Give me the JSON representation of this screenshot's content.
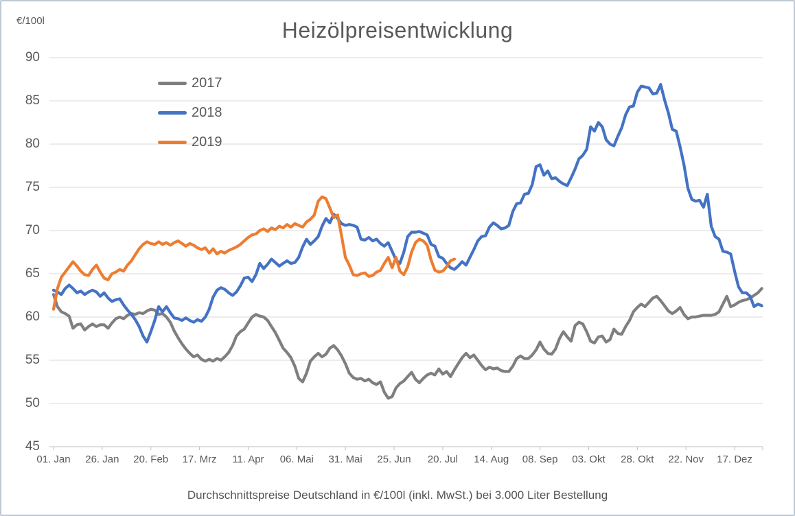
{
  "chart_data": {
    "type": "line",
    "title": "Heizölpreisentwicklung",
    "unit_label": "€/100l",
    "footer": "Durchschnittspreise Deutschland in €/100l (inkl. MwSt.) bei 3.000 Liter Bestellung",
    "grid": true,
    "legend_position": "upper-left-inside",
    "ylim": [
      45,
      90
    ],
    "yticks": [
      90,
      85,
      80,
      75,
      70,
      65,
      60,
      55,
      50,
      45
    ],
    "xticks": [
      "01. Jan",
      "26. Jan",
      "20. Feb",
      "17. Mrz",
      "11. Apr",
      "06. Mai",
      "31. Mai",
      "25. Jun",
      "20. Jul",
      "14. Aug",
      "08. Sep",
      "03. Okt",
      "28. Okt",
      "22. Nov",
      "17. Dez"
    ],
    "xtick_interval_days": 25,
    "x_unit": "day-of-year",
    "sample_step_days": 2,
    "grid_color": "#d9d9d9",
    "axis_color": "#bfbfbf",
    "text_color": "#595959",
    "series": [
      {
        "name": "2017",
        "color": "#7f7f7f",
        "start_day": 1,
        "values": [
          62.6,
          61.2,
          60.6,
          60.4,
          60.1,
          58.7,
          59.1,
          59.2,
          58.5,
          58.9,
          59.2,
          58.9,
          59.1,
          59.1,
          58.7,
          59.3,
          59.8,
          60.0,
          59.8,
          60.2,
          60.4,
          60.3,
          60.5,
          60.4,
          60.7,
          60.9,
          60.8,
          60.3,
          60.4,
          60.0,
          59.4,
          58.4,
          57.6,
          56.9,
          56.3,
          55.8,
          55.4,
          55.6,
          55.1,
          54.9,
          55.1,
          54.9,
          55.2,
          55.0,
          55.4,
          55.9,
          56.7,
          57.8,
          58.3,
          58.6,
          59.3,
          60.0,
          60.3,
          60.1,
          60.0,
          59.6,
          58.9,
          58.2,
          57.3,
          56.4,
          55.9,
          55.3,
          54.3,
          52.9,
          52.5,
          53.5,
          54.9,
          55.4,
          55.8,
          55.4,
          55.7,
          56.4,
          56.7,
          56.2,
          55.5,
          54.6,
          53.5,
          53.0,
          52.8,
          52.9,
          52.6,
          52.8,
          52.4,
          52.2,
          52.5,
          51.3,
          50.6,
          50.8,
          51.8,
          52.3,
          52.6,
          53.1,
          53.6,
          52.8,
          52.4,
          52.9,
          53.3,
          53.5,
          53.3,
          54.0,
          53.4,
          53.7,
          53.1,
          53.9,
          54.6,
          55.3,
          55.8,
          55.3,
          55.6,
          55.0,
          54.4,
          53.9,
          54.2,
          54.0,
          54.1,
          53.8,
          53.7,
          53.7,
          54.3,
          55.2,
          55.5,
          55.2,
          55.2,
          55.6,
          56.2,
          57.1,
          56.3,
          55.8,
          55.7,
          56.3,
          57.5,
          58.3,
          57.7,
          57.2,
          59.0,
          59.4,
          59.2,
          58.3,
          57.2,
          57.0,
          57.7,
          57.8,
          57.1,
          57.4,
          58.6,
          58.1,
          58.0,
          58.9,
          59.6,
          60.6,
          61.1,
          61.5,
          61.2,
          61.7,
          62.2,
          62.4,
          61.9,
          61.3,
          60.7,
          60.4,
          60.7,
          61.1,
          60.3,
          59.8,
          60.0,
          60.0,
          60.1,
          60.2,
          60.2,
          60.2,
          60.3,
          60.6,
          61.5,
          62.4,
          61.2,
          61.4,
          61.7,
          61.9,
          62.0,
          62.2,
          62.5,
          62.8,
          63.3
        ]
      },
      {
        "name": "2018",
        "color": "#4472c4",
        "start_day": 1,
        "values": [
          63.1,
          62.9,
          62.6,
          63.3,
          63.7,
          63.3,
          62.8,
          63.0,
          62.6,
          62.9,
          63.1,
          62.9,
          62.4,
          62.8,
          62.2,
          61.8,
          62.0,
          62.1,
          61.4,
          60.8,
          60.3,
          59.7,
          58.9,
          57.8,
          57.1,
          58.3,
          59.6,
          61.2,
          60.6,
          61.2,
          60.5,
          59.9,
          59.8,
          59.6,
          59.9,
          59.6,
          59.4,
          59.7,
          59.5,
          60.0,
          60.9,
          62.3,
          63.1,
          63.4,
          63.2,
          62.8,
          62.5,
          62.9,
          63.6,
          64.5,
          64.6,
          64.1,
          64.9,
          66.2,
          65.6,
          66.1,
          66.7,
          66.3,
          65.9,
          66.2,
          66.5,
          66.2,
          66.3,
          66.9,
          68.1,
          69.0,
          68.4,
          68.8,
          69.3,
          70.5,
          71.4,
          70.9,
          71.9,
          71.4,
          70.8,
          70.6,
          70.7,
          70.6,
          70.4,
          69.0,
          68.9,
          69.2,
          68.8,
          69.0,
          68.5,
          68.2,
          68.6,
          67.6,
          66.6,
          66.2,
          67.5,
          69.3,
          69.8,
          69.8,
          69.9,
          69.7,
          69.5,
          68.4,
          68.2,
          67.0,
          66.8,
          66.2,
          65.7,
          65.5,
          65.9,
          66.4,
          66.0,
          66.9,
          67.8,
          68.8,
          69.3,
          69.4,
          70.4,
          70.9,
          70.6,
          70.2,
          70.3,
          70.6,
          72.2,
          73.1,
          73.2,
          74.2,
          74.3,
          75.3,
          77.4,
          77.6,
          76.4,
          76.9,
          76.0,
          76.1,
          75.7,
          75.4,
          75.2,
          76.1,
          77.1,
          78.3,
          78.7,
          79.4,
          82.0,
          81.5,
          82.5,
          82.0,
          80.5,
          80.0,
          79.8,
          80.9,
          81.9,
          83.4,
          84.3,
          84.4,
          86.0,
          86.7,
          86.6,
          86.5,
          85.8,
          85.9,
          86.9,
          85.1,
          83.6,
          81.7,
          81.5,
          79.7,
          77.6,
          74.9,
          73.6,
          73.4,
          73.5,
          72.7,
          74.2,
          70.5,
          69.3,
          69.0,
          67.6,
          67.5,
          67.3,
          65.3,
          63.5,
          62.8,
          62.8,
          62.4,
          61.2,
          61.5,
          61.3
        ]
      },
      {
        "name": "2019",
        "color": "#ed7d31",
        "start_day": 1,
        "values": [
          60.9,
          63.3,
          64.6,
          65.2,
          65.8,
          66.4,
          65.9,
          65.3,
          64.9,
          64.8,
          65.5,
          66.0,
          65.2,
          64.5,
          64.3,
          65.0,
          65.2,
          65.5,
          65.3,
          66.0,
          66.5,
          67.2,
          67.9,
          68.4,
          68.7,
          68.5,
          68.4,
          68.7,
          68.4,
          68.6,
          68.3,
          68.6,
          68.8,
          68.5,
          68.2,
          68.5,
          68.3,
          68.0,
          67.8,
          68.0,
          67.4,
          67.9,
          67.3,
          67.6,
          67.4,
          67.7,
          67.9,
          68.1,
          68.4,
          68.8,
          69.2,
          69.5,
          69.6,
          70.0,
          70.2,
          69.9,
          70.3,
          70.1,
          70.5,
          70.3,
          70.7,
          70.4,
          70.8,
          70.6,
          70.4,
          71.0,
          71.3,
          71.8,
          73.4,
          73.9,
          73.7,
          72.6,
          71.5,
          71.8,
          69.4,
          66.9,
          66.0,
          64.9,
          64.8,
          65.0,
          65.1,
          64.7,
          64.8,
          65.2,
          65.4,
          66.2,
          66.9,
          65.7,
          66.9,
          65.3,
          64.9,
          65.8,
          67.5,
          68.6,
          69.0,
          68.8,
          68.3,
          66.6,
          65.4,
          65.2,
          65.3,
          65.8,
          66.5,
          66.7
        ]
      }
    ]
  }
}
